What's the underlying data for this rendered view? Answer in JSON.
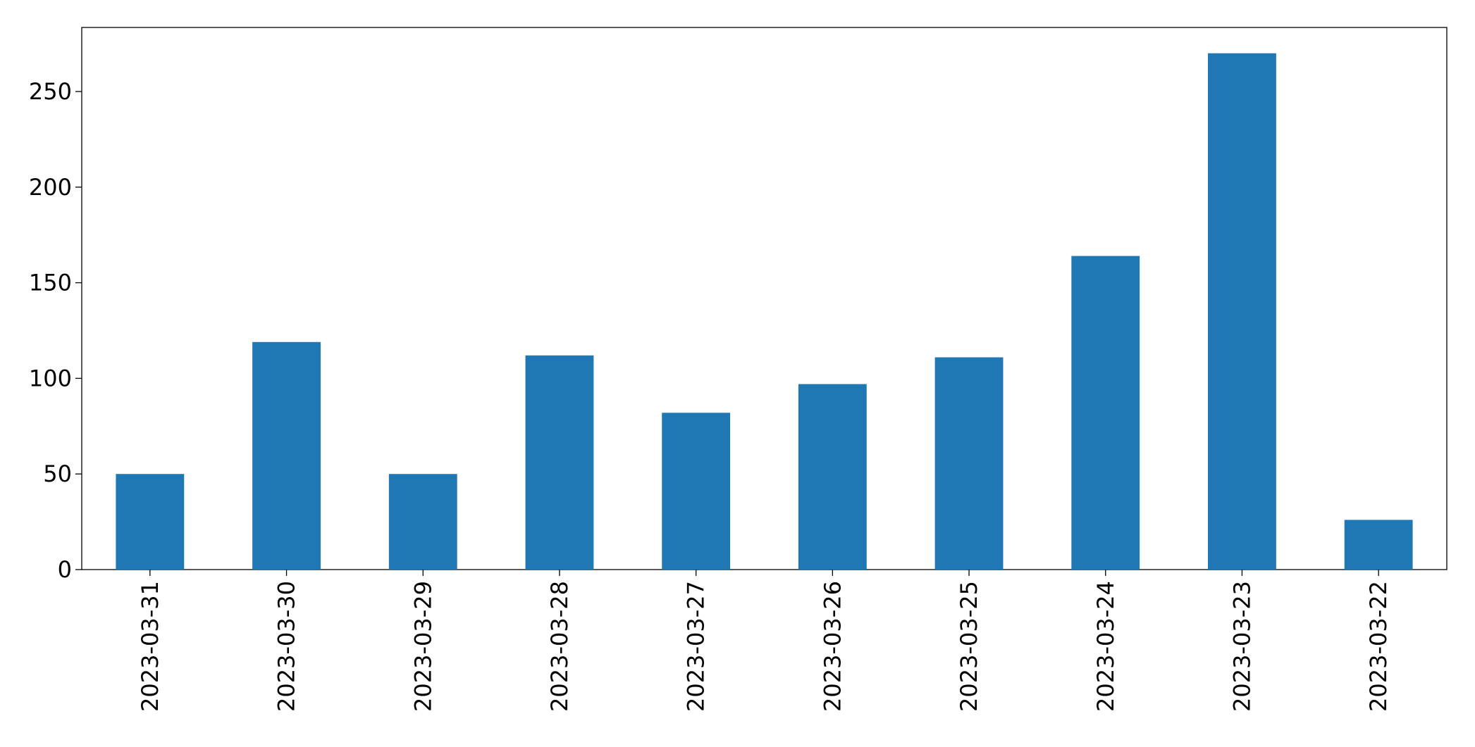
{
  "chart_data": {
    "type": "bar",
    "categories": [
      "2023-03-31",
      "2023-03-30",
      "2023-03-29",
      "2023-03-28",
      "2023-03-27",
      "2023-03-26",
      "2023-03-25",
      "2023-03-24",
      "2023-03-23",
      "2023-03-22"
    ],
    "values": [
      50,
      119,
      50,
      112,
      82,
      97,
      111,
      164,
      270,
      26
    ],
    "color": "#1f77b4",
    "ylim": [
      0,
      283.5
    ],
    "yticks": [
      0,
      50,
      100,
      150,
      200,
      250
    ],
    "grid": false
  }
}
